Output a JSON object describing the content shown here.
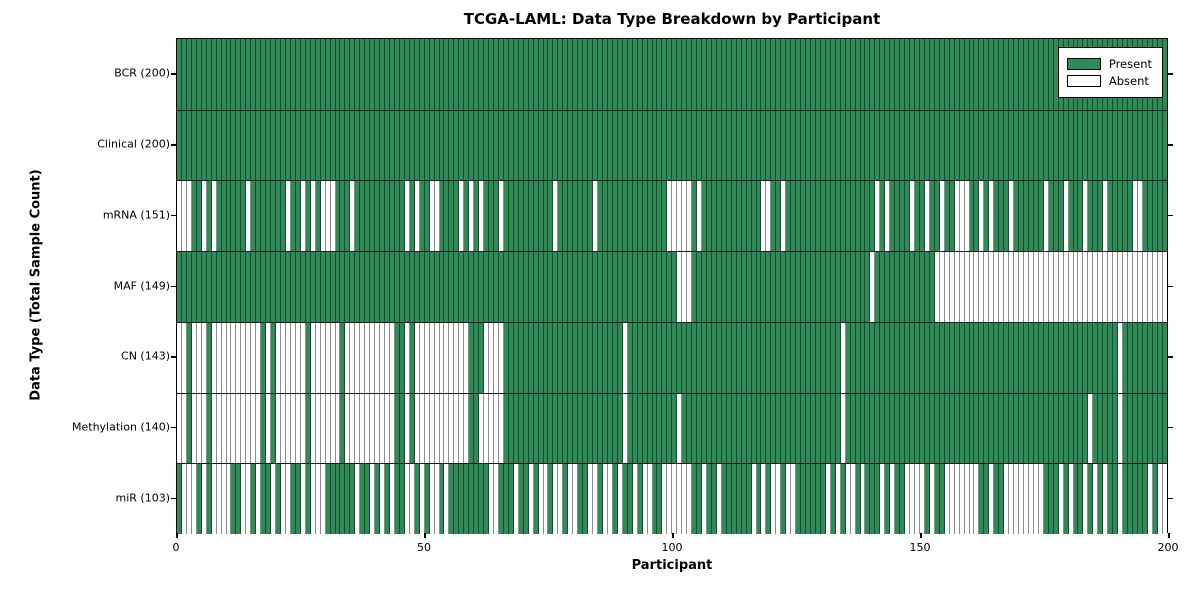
{
  "chart_data": {
    "type": "heatmap",
    "title": "TCGA-LAML: Data Type Breakdown by Participant",
    "xlabel": "Participant",
    "ylabel": "Data Type (Total Sample Count)",
    "x_range": [
      0,
      200
    ],
    "n_participants": 200,
    "x_ticks": [
      0,
      50,
      100,
      150,
      200
    ],
    "grid": false,
    "legend_position": "upper right",
    "colors": {
      "present": "#2e8b57",
      "absent": "#ffffff",
      "edge": "#000000"
    },
    "legend": [
      {
        "label": "Present",
        "color": "#2e8b57"
      },
      {
        "label": "Absent",
        "color": "#ffffff"
      }
    ],
    "rows": [
      {
        "name": "BCR",
        "label": "BCR (200)",
        "present_total": 200,
        "absent_indices": []
      },
      {
        "name": "Clinical",
        "label": "Clinical (200)",
        "present_total": 200,
        "absent_indices": []
      },
      {
        "name": "mRNA",
        "label": "mRNA (151)",
        "present_total": 151,
        "absent_indices": [
          0,
          1,
          2,
          5,
          7,
          14,
          22,
          25,
          27,
          29,
          30,
          31,
          35,
          46,
          48,
          51,
          52,
          57,
          59,
          61,
          65,
          76,
          84,
          99,
          100,
          101,
          102,
          103,
          105,
          118,
          119,
          122,
          141,
          143,
          148,
          151,
          154,
          157,
          158,
          159,
          162,
          164,
          168,
          175,
          179,
          183,
          187,
          193,
          194
        ]
      },
      {
        "name": "MAF",
        "label": "MAF (149)",
        "present_total": 149,
        "absent_indices": [
          101,
          102,
          103,
          140,
          153,
          154,
          155,
          156,
          157,
          158,
          159,
          160,
          161,
          162,
          163,
          164,
          165,
          166,
          167,
          168,
          169,
          170,
          171,
          172,
          173,
          174,
          175,
          176,
          177,
          178,
          179,
          180,
          181,
          182,
          183,
          184,
          185,
          186,
          187,
          188,
          189,
          190,
          191,
          192,
          193,
          194,
          195,
          196,
          197,
          198,
          199
        ]
      },
      {
        "name": "CN",
        "label": "CN (143)",
        "present_total": 143,
        "absent_indices": [
          0,
          1,
          3,
          4,
          5,
          7,
          8,
          9,
          10,
          11,
          12,
          13,
          14,
          15,
          16,
          18,
          20,
          21,
          22,
          23,
          24,
          25,
          27,
          28,
          29,
          30,
          31,
          32,
          34,
          35,
          36,
          37,
          38,
          39,
          40,
          41,
          42,
          43,
          46,
          48,
          49,
          50,
          51,
          52,
          53,
          54,
          55,
          56,
          57,
          58,
          62,
          63,
          64,
          65,
          90,
          134,
          190
        ]
      },
      {
        "name": "Methylation",
        "label": "Methylation (140)",
        "present_total": 140,
        "absent_indices": [
          0,
          1,
          3,
          4,
          5,
          7,
          8,
          9,
          10,
          11,
          12,
          13,
          14,
          15,
          16,
          18,
          20,
          21,
          22,
          23,
          24,
          25,
          27,
          28,
          29,
          30,
          31,
          32,
          34,
          35,
          36,
          37,
          38,
          39,
          40,
          41,
          42,
          43,
          46,
          48,
          49,
          50,
          51,
          52,
          53,
          54,
          55,
          56,
          57,
          58,
          61,
          62,
          63,
          64,
          65,
          90,
          101,
          134,
          184,
          190
        ]
      },
      {
        "name": "miR",
        "label": "miR (103)",
        "present_total": 103,
        "absent_indices": [
          1,
          2,
          3,
          5,
          7,
          8,
          9,
          10,
          13,
          14,
          16,
          19,
          21,
          22,
          25,
          27,
          28,
          29,
          36,
          39,
          41,
          43,
          46,
          47,
          49,
          51,
          52,
          54,
          63,
          64,
          68,
          71,
          73,
          74,
          76,
          77,
          79,
          80,
          83,
          84,
          86,
          87,
          89,
          92,
          94,
          95,
          98,
          99,
          100,
          101,
          102,
          103,
          106,
          109,
          116,
          118,
          120,
          121,
          123,
          124,
          131,
          133,
          135,
          136,
          138,
          142,
          144,
          147,
          148,
          149,
          150,
          152,
          155,
          156,
          157,
          158,
          159,
          160,
          161,
          164,
          167,
          168,
          169,
          170,
          171,
          172,
          173,
          174,
          178,
          180,
          183,
          185,
          187,
          190,
          196,
          198,
          199
        ]
      }
    ]
  }
}
